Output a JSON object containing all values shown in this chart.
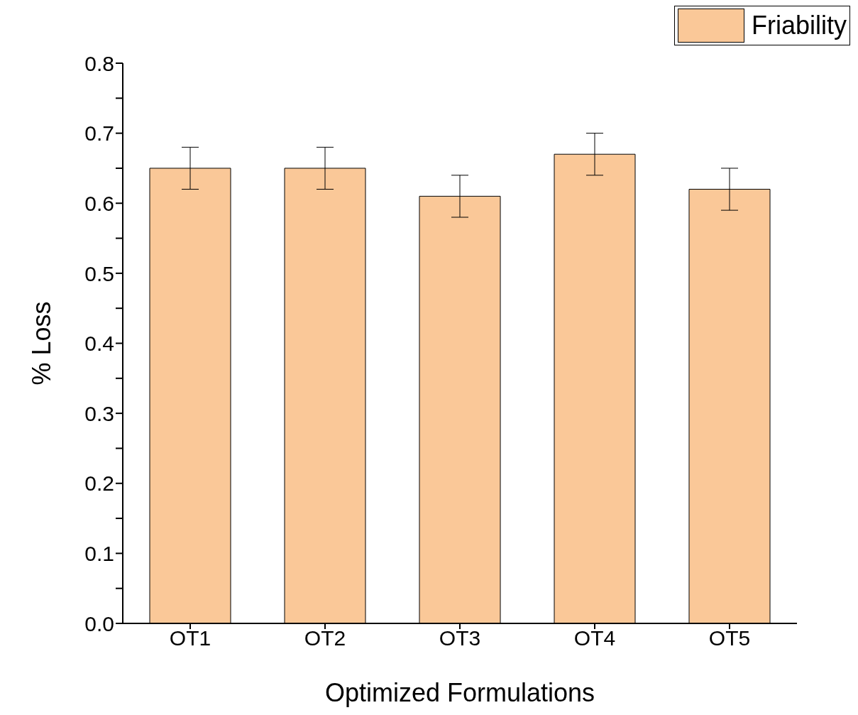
{
  "chart_data": {
    "type": "bar",
    "xlabel": "Optimized Formulations",
    "ylabel": "% Loss",
    "categories": [
      "OT1",
      "OT2",
      "OT3",
      "OT4",
      "OT5"
    ],
    "series": [
      {
        "name": "Friability",
        "color": "#fac898",
        "values": [
          0.65,
          0.65,
          0.61,
          0.67,
          0.62
        ],
        "errors": [
          0.03,
          0.03,
          0.03,
          0.03,
          0.03
        ]
      }
    ],
    "ylim": [
      0,
      0.8
    ],
    "yticks": [
      {
        "value": 0,
        "label": "0.0"
      },
      {
        "value": 0.05,
        "label": null
      },
      0.1,
      {
        "value": 0.15,
        "label": null
      },
      0.2,
      {
        "value": 0.25,
        "label": null
      },
      0.3,
      {
        "value": 0.35,
        "label": null
      },
      0.4,
      {
        "value": 0.45,
        "label": null
      },
      0.5,
      {
        "value": 0.55,
        "label": null
      },
      0.6,
      {
        "value": 0.65,
        "label": null
      },
      0.7,
      {
        "value": 0.75,
        "label": null
      },
      0.8
    ],
    "grid": false,
    "legend": "top right"
  }
}
